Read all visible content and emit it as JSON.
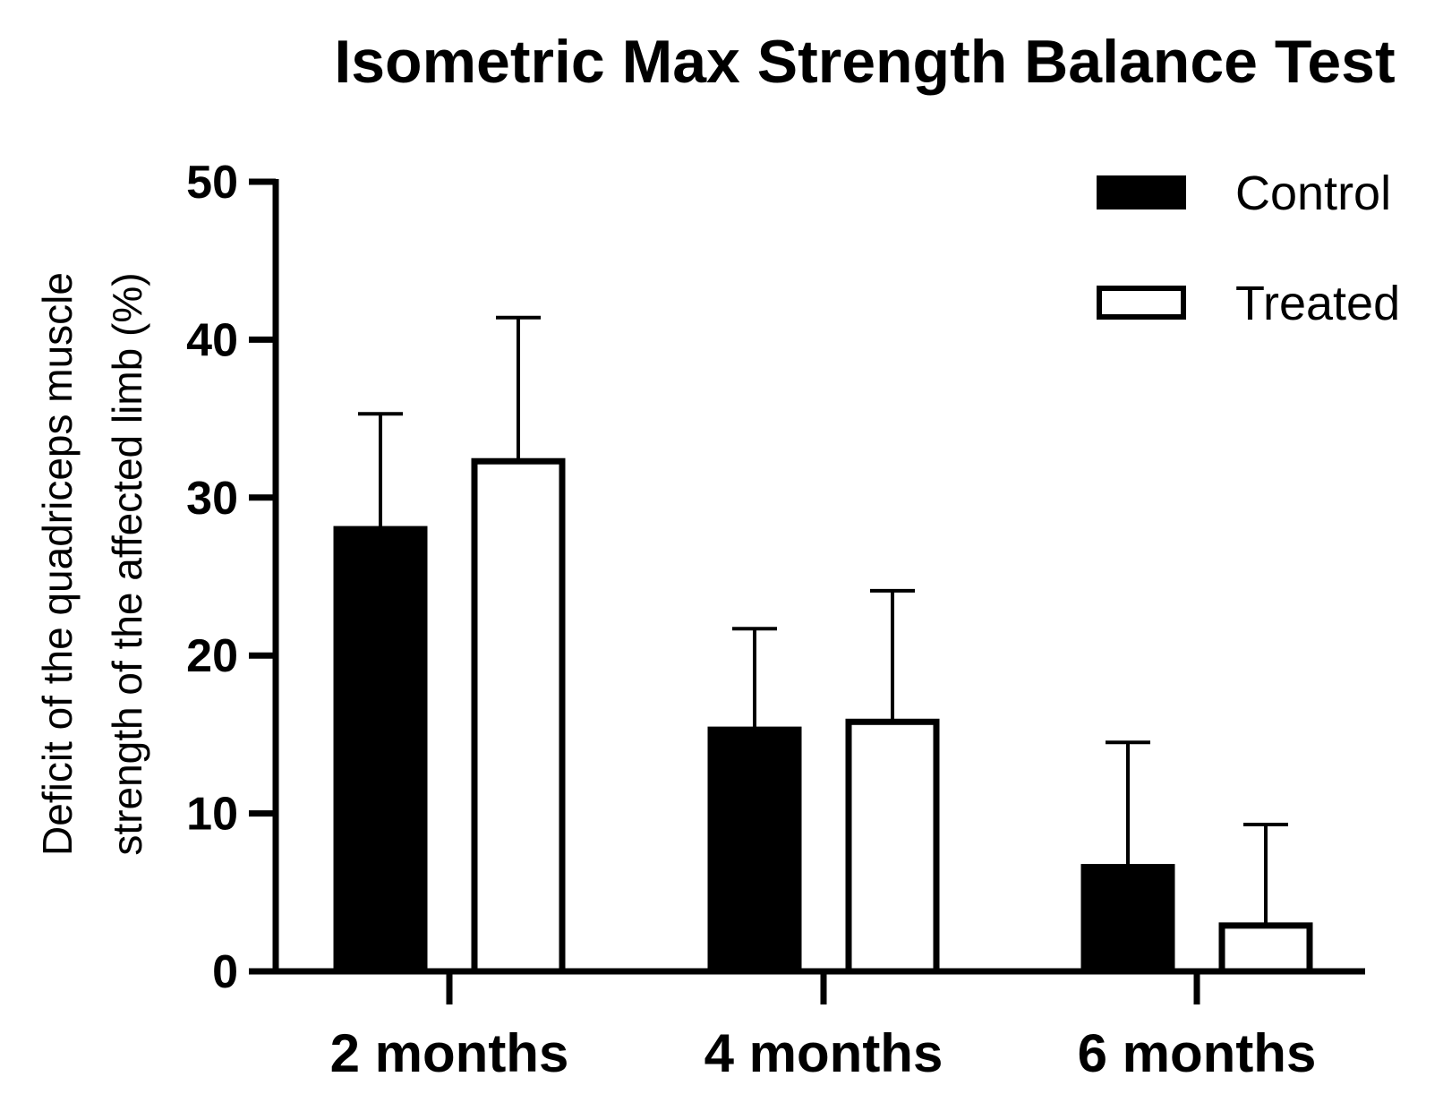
{
  "chart_data": {
    "type": "bar",
    "title": "Isometric Max Strength Balance Test",
    "xlabel": "",
    "ylabel_lines": [
      "Deficit of the quadriceps muscle",
      "strength of the affected limb (%)"
    ],
    "categories": [
      "2 months",
      "4 months",
      "6 months"
    ],
    "ylim": [
      0,
      50
    ],
    "yticks": [
      0,
      10,
      20,
      30,
      40,
      50
    ],
    "ytick_labels": [
      "0",
      "10",
      "20",
      "30",
      "40",
      "50"
    ],
    "grid": false,
    "legend_position": "top-right",
    "series": [
      {
        "name": "Control",
        "fill": "#000000",
        "stroke": "#000000",
        "values": [
          28.0,
          15.3,
          6.6
        ],
        "errors": [
          7.3,
          6.4,
          7.9
        ]
      },
      {
        "name": "Treated",
        "fill": "#ffffff",
        "stroke": "#000000",
        "values": [
          32.3,
          15.8,
          2.9
        ],
        "errors": [
          9.1,
          8.3,
          6.4
        ]
      }
    ]
  }
}
